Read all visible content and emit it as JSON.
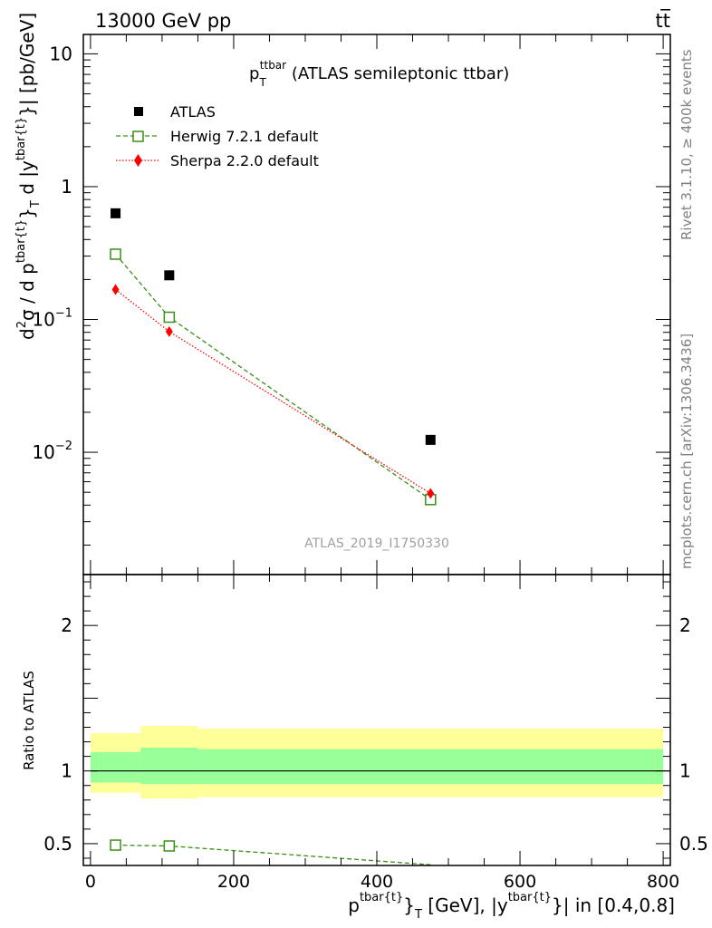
{
  "header": {
    "left": "13000 GeV pp",
    "right": "tt̅"
  },
  "side_labels": {
    "rivet": "Rivet 3.1.10, ≥ 400k events",
    "mcplots": "mcplots.cern.ch [arXiv:1306.3436]"
  },
  "watermark": "ATLAS_2019_I1750330",
  "chart_data": [
    {
      "type": "scatter",
      "panel": "main",
      "title": {
        "main": "p",
        "sub": "T",
        "sup": "ttbar",
        "rest": " (ATLAS semileptonic ttbar)"
      },
      "ylabel": "d²σ / d p^{tbar{t}}_T d |y^{tbar{t}}| [pb/GeV]",
      "ylabel_parts": {
        "a": "d",
        "a_sup": "2",
        "b": "σ / d p",
        "b_sup": "tbar{t}",
        "c": "}",
        "c_sub": "T",
        "d": " d |y",
        "d_sup": "tbar{t}",
        "e": "}| [pb/GeV]"
      },
      "yscale": "log",
      "ylim": [
        0.0012,
        14
      ],
      "xlim": [
        -10,
        810
      ],
      "yticks": [
        {
          "v": 10,
          "base": "10",
          "exp": ""
        },
        {
          "v": 1,
          "base": "1",
          "exp": ""
        },
        {
          "v": 0.1,
          "base": "10",
          "exp": "−1"
        },
        {
          "v": 0.01,
          "base": "10",
          "exp": "−2"
        }
      ],
      "legend_position": "top-left",
      "series": [
        {
          "name": "ATLAS",
          "marker": "filled-square",
          "color": "#000000",
          "line": "none",
          "x": [
            35,
            110,
            475
          ],
          "y": [
            0.63,
            0.215,
            0.0124
          ]
        },
        {
          "name": "Herwig 7.2.1 default",
          "marker": "open-square",
          "color": "#3a8f17",
          "line": "dashed",
          "x": [
            35,
            110,
            475
          ],
          "y": [
            0.31,
            0.104,
            0.0044
          ]
        },
        {
          "name": "Sherpa 2.2.0 default",
          "marker": "diamond",
          "color": "#ff0000",
          "line": "dotted",
          "x": [
            35,
            110,
            475
          ],
          "y": [
            0.168,
            0.081,
            0.0049
          ]
        }
      ]
    },
    {
      "type": "line",
      "panel": "ratio",
      "ylabel": "Ratio to ATLAS",
      "ylim": [
        0.35,
        2.35
      ],
      "xlim": [
        -10,
        810
      ],
      "yticks": [
        0.5,
        1,
        2
      ],
      "ytick_labels": [
        "0.5",
        "1",
        "2"
      ],
      "xticks": [
        0,
        200,
        400,
        600,
        800
      ],
      "xtick_labels": [
        "0",
        "200",
        "400",
        "600",
        "800"
      ],
      "xlabel_parts": {
        "a": "p",
        "a_sup": "tbar{t}",
        "b": "}",
        "b_sub": "T",
        "c": " [GeV], |y",
        "c_sup": "tbar{t}",
        "d": "}| in [0.4,0.8]"
      },
      "reference_line": 1,
      "bands": {
        "edges": [
          0,
          70,
          150,
          800
        ],
        "outer": [
          [
            0.85,
            1.26
          ],
          [
            0.81,
            1.31
          ],
          [
            0.82,
            1.29
          ]
        ],
        "inner": [
          [
            0.92,
            1.13
          ],
          [
            0.91,
            1.16
          ],
          [
            0.91,
            1.15
          ]
        ],
        "outer_color": "#ffff99",
        "inner_color": "#99ff99"
      },
      "series": [
        {
          "name": "Herwig 7.2.1 default",
          "color": "#3a8f17",
          "x": [
            35,
            110,
            475
          ],
          "y": [
            0.49,
            0.484,
            0.355
          ]
        }
      ]
    }
  ]
}
